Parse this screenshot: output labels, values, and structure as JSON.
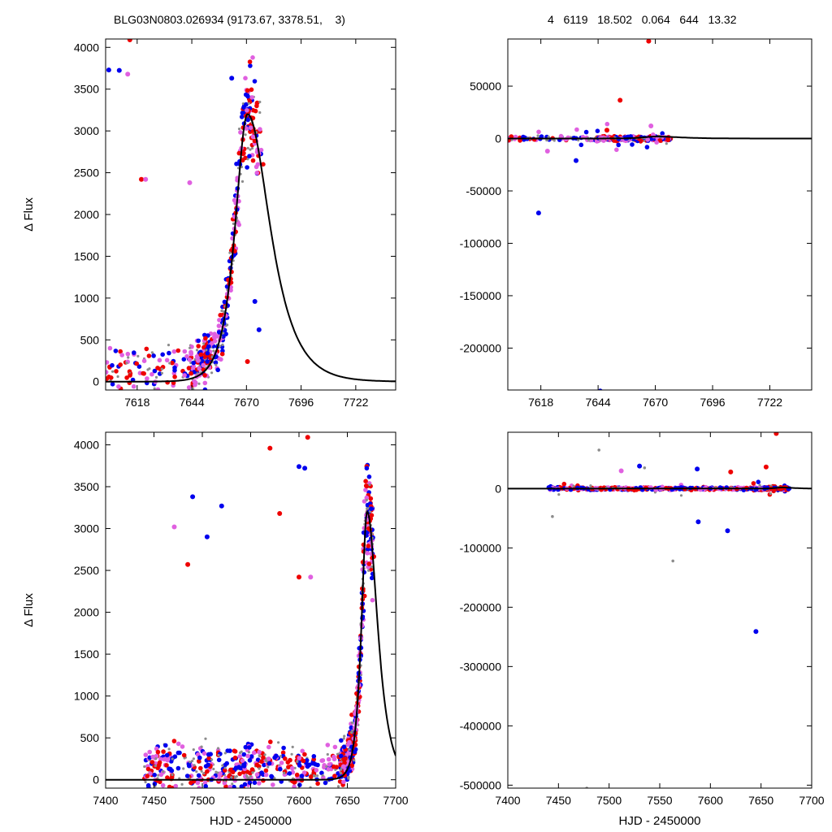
{
  "header": {
    "left": "BLG03N0803.026934 (9173.67, 3378.51,    3)",
    "right": "4   6119   18.502   0.064   644   13.32"
  },
  "colors": {
    "red": "#ee0000",
    "blue": "#0000ee",
    "magenta": "#e060e0",
    "gray": "#8c8c8c",
    "model": "#000000"
  },
  "model": {
    "t0": 7670.5,
    "peak": 3200,
    "rise": 5.2,
    "decay": 9.5
  },
  "chart_data": [
    {
      "id": "panel-top-left",
      "type": "scatter",
      "xlabel": "",
      "ylabel": "Δ Flux",
      "xlim": [
        7603,
        7741
      ],
      "ylim": [
        -100,
        4100
      ],
      "xticks": [
        7618,
        7644,
        7670,
        7696,
        7722
      ],
      "yticks": [
        0,
        500,
        1000,
        1500,
        2000,
        2500,
        3000,
        3500,
        4000
      ],
      "outliers": [
        {
          "x": 7614.5,
          "y": 4090,
          "c": "red"
        },
        {
          "x": 7604.5,
          "y": 3730,
          "c": "blue"
        },
        {
          "x": 7609.5,
          "y": 3725,
          "c": "blue"
        },
        {
          "x": 7613.5,
          "y": 3680,
          "c": "magenta"
        },
        {
          "x": 7620,
          "y": 2420,
          "c": "red"
        },
        {
          "x": 7622,
          "y": 2420,
          "c": "magenta"
        },
        {
          "x": 7643,
          "y": 2380,
          "c": "magenta"
        },
        {
          "x": 7663,
          "y": 3630,
          "c": "blue"
        },
        {
          "x": 7674,
          "y": 960,
          "c": "blue"
        },
        {
          "x": 7676,
          "y": 620,
          "c": "blue"
        },
        {
          "x": 7670.5,
          "y": 240,
          "c": "red"
        }
      ]
    },
    {
      "id": "panel-top-right",
      "type": "scatter",
      "xlabel": "",
      "ylabel": "",
      "xlim": [
        7603,
        7741
      ],
      "ylim": [
        -240000,
        95000
      ],
      "xticks": [
        7618,
        7644,
        7670,
        7696,
        7722
      ],
      "yticks": [
        -200000,
        -150000,
        -100000,
        -50000,
        0,
        50000
      ],
      "outliers": [
        {
          "x": 7667,
          "y": 93000,
          "c": "red"
        },
        {
          "x": 7654,
          "y": 36500,
          "c": "red"
        },
        {
          "x": 7617,
          "y": -71000,
          "c": "blue"
        },
        {
          "x": 7645,
          "y": -241000,
          "c": "blue"
        },
        {
          "x": 7634,
          "y": -21000,
          "c": "blue"
        },
        {
          "x": 7648,
          "y": 8000,
          "c": "red"
        },
        {
          "x": 7668,
          "y": 12000,
          "c": "magenta"
        },
        {
          "x": 7621,
          "y": -12000,
          "c": "magenta"
        }
      ]
    },
    {
      "id": "panel-bottom-left",
      "type": "scatter",
      "xlabel": "HJD - 2450000",
      "ylabel": "Δ Flux",
      "xlim": [
        7400,
        7700
      ],
      "ylim": [
        -100,
        4150
      ],
      "xticks": [
        7400,
        7450,
        7500,
        7550,
        7600,
        7650,
        7700
      ],
      "yticks": [
        0,
        500,
        1000,
        1500,
        2000,
        2500,
        3000,
        3500,
        4000
      ],
      "outliers": [
        {
          "x": 7609,
          "y": 4090,
          "c": "red"
        },
        {
          "x": 7570,
          "y": 3960,
          "c": "red"
        },
        {
          "x": 7600,
          "y": 3740,
          "c": "blue"
        },
        {
          "x": 7606,
          "y": 3720,
          "c": "blue"
        },
        {
          "x": 7490,
          "y": 3380,
          "c": "blue"
        },
        {
          "x": 7471,
          "y": 3020,
          "c": "magenta"
        },
        {
          "x": 7520,
          "y": 3270,
          "c": "blue"
        },
        {
          "x": 7505,
          "y": 2900,
          "c": "blue"
        },
        {
          "x": 7485,
          "y": 2570,
          "c": "red"
        },
        {
          "x": 7612,
          "y": 2420,
          "c": "magenta"
        },
        {
          "x": 7580,
          "y": 3180,
          "c": "red"
        },
        {
          "x": 7600,
          "y": 2420,
          "c": "red"
        }
      ]
    },
    {
      "id": "panel-bottom-right",
      "type": "scatter",
      "xlabel": "HJD - 2450000",
      "ylabel": "",
      "xlim": [
        7400,
        7700
      ],
      "ylim": [
        -505000,
        95000
      ],
      "xticks": [
        7400,
        7450,
        7500,
        7550,
        7600,
        7650,
        7700
      ],
      "yticks": [
        -500000,
        -400000,
        -300000,
        -200000,
        -100000,
        0
      ],
      "outliers": [
        {
          "x": 7665,
          "y": 93000,
          "c": "red"
        },
        {
          "x": 7655,
          "y": 36500,
          "c": "red"
        },
        {
          "x": 7617,
          "y": -71000,
          "c": "blue"
        },
        {
          "x": 7645,
          "y": -241000,
          "c": "blue"
        },
        {
          "x": 7588,
          "y": -56000,
          "c": "blue"
        },
        {
          "x": 7563,
          "y": -122000,
          "c": "gray"
        },
        {
          "x": 7490,
          "y": 65000,
          "c": "gray"
        },
        {
          "x": 7512,
          "y": 30000,
          "c": "magenta"
        },
        {
          "x": 7530,
          "y": 38000,
          "c": "blue"
        },
        {
          "x": 7587,
          "y": 33000,
          "c": "blue"
        },
        {
          "x": 7620,
          "y": 28000,
          "c": "red"
        },
        {
          "x": 7444,
          "y": -47000,
          "c": "gray"
        },
        {
          "x": 7535,
          "y": 35000,
          "c": "gray"
        },
        {
          "x": 7478,
          "y": -505000,
          "c": "gray"
        }
      ]
    }
  ]
}
